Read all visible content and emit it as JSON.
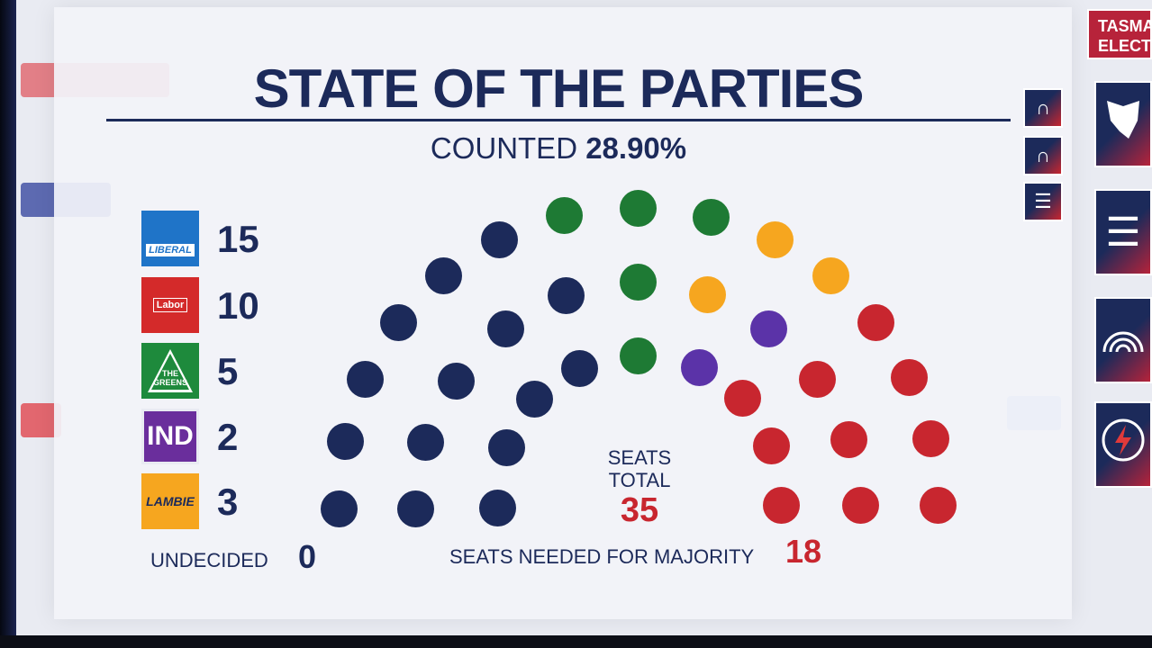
{
  "title": "STATE OF THE PARTIES",
  "counted": {
    "label": "COUNTED",
    "value": "28.90%"
  },
  "brand": {
    "line1": "TASMA",
    "line2": "ELECT"
  },
  "parties": [
    {
      "id": "liberal",
      "logo_text": "LIBERAL",
      "seats": "15",
      "color": "#1c2a5a"
    },
    {
      "id": "labor",
      "logo_text": "Labor",
      "seats": "10",
      "color": "#c8262f"
    },
    {
      "id": "greens",
      "logo_text_1": "THE",
      "logo_text_2": "GREENS",
      "seats": "5",
      "color": "#1e7a34"
    },
    {
      "id": "independent",
      "logo_text": "IND",
      "seats": "2",
      "color": "#5b33a8"
    },
    {
      "id": "lambie",
      "logo_text": "LAMBIE",
      "seats": "3",
      "color": "#f6a61f"
    }
  ],
  "undecided": {
    "label": "UNDECIDED",
    "value": "0"
  },
  "seats_total": {
    "label_1": "SEATS",
    "label_2": "TOTAL",
    "value": "35"
  },
  "majority": {
    "label": "SEATS NEEDED FOR MAJORITY",
    "value": "18"
  },
  "side_buttons": [
    {
      "icon": "arc-outline-icon"
    },
    {
      "icon": "arc-solid-icon"
    },
    {
      "icon": "bar-chart-icon"
    }
  ],
  "nav_buttons": [
    {
      "icon": "tasmania-map-icon"
    },
    {
      "icon": "list-icon"
    },
    {
      "icon": "rainbow-arc-icon"
    },
    {
      "icon": "lightning-icon"
    }
  ]
}
